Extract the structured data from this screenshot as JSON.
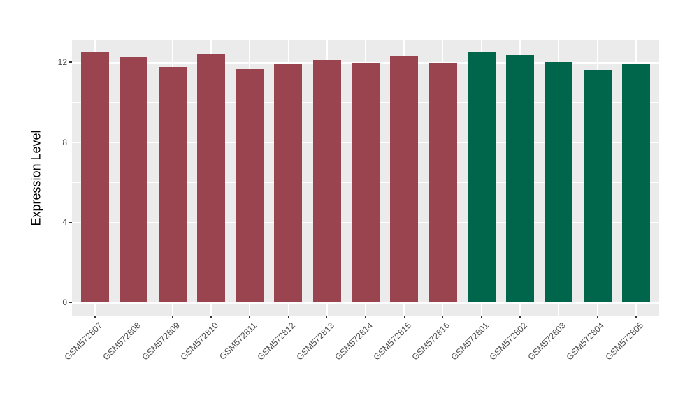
{
  "chart_data": {
    "type": "bar",
    "title": "",
    "xlabel": "",
    "ylabel": "Expression Level",
    "ylim": [
      0,
      13.1
    ],
    "yticks": [
      0,
      4,
      8,
      12
    ],
    "yticks_minor": [
      2,
      6,
      10
    ],
    "grid": true,
    "legend_position": "none",
    "categories": [
      "GSM572807",
      "GSM572808",
      "GSM572809",
      "GSM572810",
      "GSM572811",
      "GSM572812",
      "GSM572813",
      "GSM572814",
      "GSM572815",
      "GSM572816",
      "GSM572801",
      "GSM572802",
      "GSM572803",
      "GSM572804",
      "GSM572805"
    ],
    "values": [
      12.5,
      12.25,
      11.75,
      12.38,
      11.65,
      11.93,
      12.12,
      11.97,
      12.3,
      11.96,
      12.52,
      12.33,
      12.01,
      11.62,
      11.93
    ],
    "groups": [
      0,
      0,
      0,
      0,
      0,
      0,
      0,
      0,
      0,
      0,
      1,
      1,
      1,
      1,
      1
    ],
    "palette": [
      "#9A4450",
      "#00664B"
    ]
  },
  "style": {
    "page_bg": "#FFFFFF",
    "panel_bg": "#EBEBEB",
    "grid_color": "#FFFFFF",
    "axis_text_color": "#4D4D4D",
    "axis_title_color": "#000000",
    "tick_mark_color": "#333333"
  }
}
